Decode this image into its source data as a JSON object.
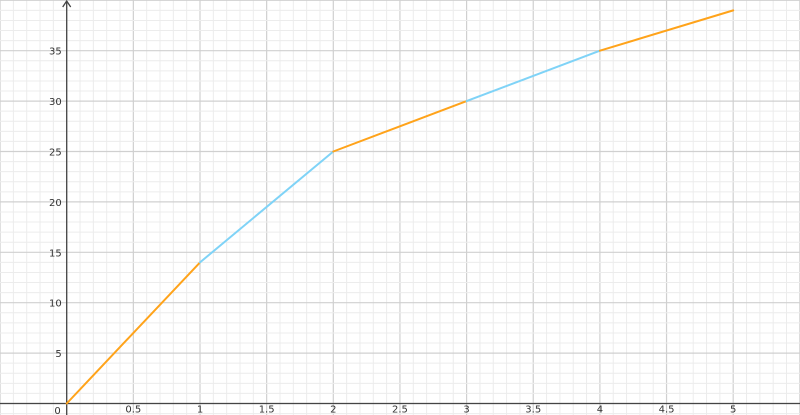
{
  "chart_data": {
    "type": "line",
    "title": "",
    "xlabel": "",
    "ylabel": "",
    "xlim": [
      -0.5,
      5.5
    ],
    "ylim": [
      -1,
      40
    ],
    "grid": true,
    "x_ticks": [
      "0.5",
      "1",
      "1.5",
      "2",
      "2.5",
      "3",
      "3.5",
      "4",
      "4.5",
      "5"
    ],
    "y_ticks": [
      "5",
      "10",
      "15",
      "20",
      "25",
      "30",
      "35"
    ],
    "origin_label": "0",
    "segments": [
      {
        "x": [
          0,
          1
        ],
        "y": [
          0,
          14
        ],
        "color": "#ffa31a"
      },
      {
        "x": [
          1,
          2
        ],
        "y": [
          14,
          25
        ],
        "color": "#7fd3f7"
      },
      {
        "x": [
          2,
          3
        ],
        "y": [
          25,
          30
        ],
        "color": "#ffa31a"
      },
      {
        "x": [
          3,
          4
        ],
        "y": [
          30,
          35
        ],
        "color": "#7fd3f7"
      },
      {
        "x": [
          4,
          5
        ],
        "y": [
          35,
          39
        ],
        "color": "#ffa31a"
      }
    ]
  }
}
